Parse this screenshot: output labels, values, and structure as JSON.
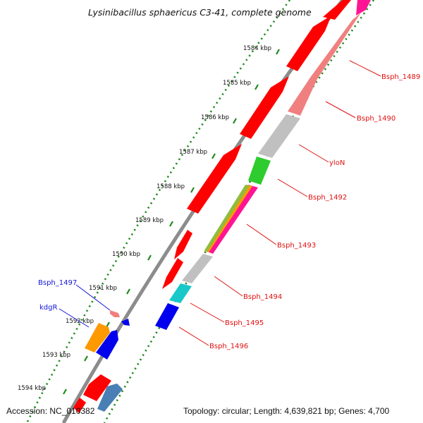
{
  "title": "Lysinibacillus sphaericus C3-41, complete genome",
  "footer": {
    "accession": "Accession: NC_010382",
    "topology": "Topology: circular; Length: 4,639,821 bp; Genes: 4,700"
  },
  "scale_labels": [
    "1584 kbp",
    "1585 kbp",
    "1586 kbp",
    "1587 kbp",
    "1588 kbp",
    "1589 kbp",
    "1590 kbp",
    "1591 kbp",
    "1592 kbp",
    "1593 kbp",
    "1594 kbp"
  ],
  "gene_labels_right": [
    "Bsph_1489",
    "Bsph_1490",
    "yloN",
    "Bsph_1492",
    "Bsph_1493",
    "Bsph_1494",
    "Bsph_1495",
    "Bsph_1496"
  ],
  "gene_labels_left": [
    "Bsph_1497",
    "kdgR"
  ],
  "colors": {
    "backbone": "#8c8c8c",
    "scale_dots": "#1f8a1f",
    "gene_red": "#ff0000",
    "gene_pink": "#f08080",
    "gene_gray": "#c0c0c0",
    "gene_green": "#2ecc2e",
    "gene_cyan": "#19c8c8",
    "gene_blue": "#0000ee",
    "gene_orange": "#ff9900",
    "gene_steel": "#4a7fb5",
    "label_red": "#e01010",
    "label_blue": "#1414d8"
  }
}
